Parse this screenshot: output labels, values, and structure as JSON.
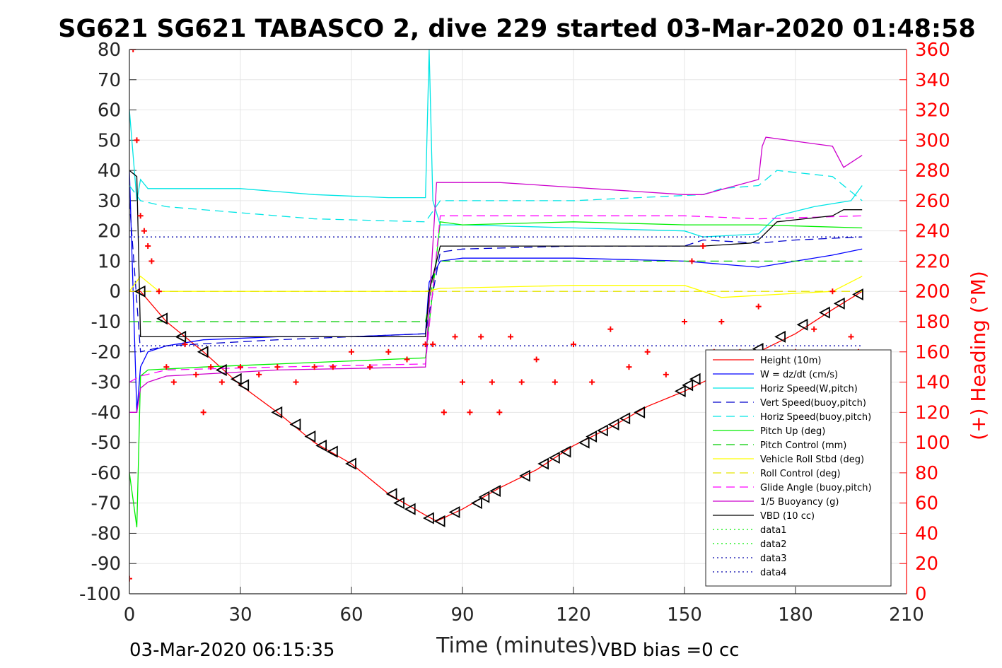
{
  "chart_data": {
    "type": "line",
    "title": "SG621 SG621 TABASCO 2, dive 229 started 03-Mar-2020 01:48:58",
    "xlabel": "Time (minutes)",
    "ylabel_right": "(+) Heading (°M)",
    "xlim": [
      0,
      210
    ],
    "ylim_left": [
      -100,
      80
    ],
    "ylim_right": [
      0,
      360
    ],
    "xticks": [
      "0",
      "30",
      "60",
      "90",
      "120",
      "150",
      "180",
      "210"
    ],
    "yticks_left": [
      "80",
      "70",
      "60",
      "50",
      "40",
      "30",
      "20",
      "10",
      "0",
      "-10",
      "-20",
      "-30",
      "-40",
      "-50",
      "-60",
      "-70",
      "-80",
      "-90",
      "-100"
    ],
    "yticks_right": [
      "360",
      "340",
      "320",
      "300",
      "280",
      "260",
      "240",
      "220",
      "200",
      "180",
      "160",
      "140",
      "120",
      "100",
      "80",
      "60",
      "40",
      "20",
      "0"
    ],
    "grid": true,
    "legend_position": "lower-right",
    "footer_left": "03-Mar-2020 06:15:35",
    "footer_right": "VBD bias =0 cc",
    "series": [
      {
        "name": "Height (10m)",
        "color": "#ff0000",
        "style": "solid",
        "x": [
          0,
          3,
          10,
          20,
          30,
          40,
          50,
          60,
          70,
          80,
          83,
          90,
          100,
          110,
          120,
          130,
          140,
          150,
          160,
          170,
          180,
          190,
          198
        ],
        "y": [
          0,
          0,
          -10,
          -20,
          -31,
          -40,
          -50,
          -57,
          -67,
          -74,
          -76,
          -72,
          -65,
          -59,
          -51,
          -45,
          -38,
          -33,
          -27,
          -20,
          -14,
          -6,
          0
        ]
      },
      {
        "name": "W = dz/dt (cm/s)",
        "color": "#0000ff",
        "style": "solid",
        "x": [
          0,
          2,
          3,
          5,
          10,
          20,
          40,
          60,
          80,
          81,
          84,
          90,
          120,
          150,
          170,
          180,
          190,
          198
        ],
        "y": [
          40,
          -40,
          -25,
          -20,
          -18,
          -16,
          -15,
          -15,
          -14,
          3,
          10,
          11,
          11,
          10,
          8,
          10,
          12,
          14
        ]
      },
      {
        "name": "Horiz Speed(W,pitch)",
        "color": "#00e5e5",
        "style": "solid",
        "x": [
          0,
          2,
          3,
          5,
          15,
          30,
          50,
          70,
          80,
          81,
          82,
          84,
          90,
          120,
          150,
          155,
          170,
          175,
          185,
          195,
          198
        ],
        "y": [
          60,
          30,
          37,
          34,
          34,
          34,
          32,
          31,
          31,
          80,
          30,
          22,
          22,
          21,
          20,
          18,
          19,
          25,
          28,
          30,
          35
        ]
      },
      {
        "name": "Vert Speed(buoy,pitch)",
        "color": "#0000cc",
        "style": "dashed",
        "x": [
          0,
          3,
          10,
          40,
          80,
          84,
          90,
          120,
          150,
          155,
          170,
          180,
          198
        ],
        "y": [
          30,
          -20,
          -18,
          -16,
          -14,
          13,
          14,
          15,
          15,
          17,
          16,
          17,
          18
        ]
      },
      {
        "name": "Horiz Speed(buoy,pitch)",
        "color": "#00e5e5",
        "style": "dashed",
        "x": [
          0,
          3,
          10,
          30,
          50,
          80,
          84,
          120,
          155,
          160,
          170,
          175,
          190,
          198
        ],
        "y": [
          35,
          30,
          28,
          26,
          24,
          23,
          30,
          30,
          32,
          34,
          35,
          40,
          38,
          30
        ]
      },
      {
        "name": "Pitch Up (deg)",
        "color": "#00ee00",
        "style": "solid",
        "x": [
          0,
          2,
          3,
          5,
          20,
          40,
          60,
          80,
          84,
          90,
          120,
          150,
          170,
          198
        ],
        "y": [
          -60,
          -78,
          -28,
          -26,
          -25,
          -24,
          -23,
          -22,
          23,
          22,
          23,
          22,
          22,
          21
        ]
      },
      {
        "name": "Pitch Control (mm)",
        "color": "#00cc00",
        "style": "dashed",
        "x": [
          0,
          80,
          83,
          198
        ],
        "y": [
          -10,
          -10,
          10,
          10
        ]
      },
      {
        "name": "Vehicle Roll Stbd (deg)",
        "color": "#ffff00",
        "style": "solid",
        "x": [
          0,
          3,
          8,
          30,
          60,
          80,
          84,
          120,
          150,
          160,
          190,
          198
        ],
        "y": [
          0,
          5,
          0,
          0,
          0,
          0,
          1,
          2,
          2,
          -2,
          0,
          5
        ]
      },
      {
        "name": "Roll Control (deg)",
        "color": "#e5e500",
        "style": "dashed",
        "x": [
          0,
          198
        ],
        "y": [
          0,
          0
        ]
      },
      {
        "name": "Glide Angle (buoy,pitch)",
        "color": "#ff00ff",
        "style": "dashed",
        "x": [
          0,
          3,
          10,
          40,
          80,
          84,
          120,
          150,
          170,
          198
        ],
        "y": [
          -30,
          -28,
          -26,
          -25,
          -24,
          25,
          25,
          25,
          24,
          25
        ]
      },
      {
        "name": "1/5 Buoyancy (g)",
        "color": "#cc00cc",
        "style": "solid",
        "x": [
          0,
          2,
          3,
          5,
          10,
          40,
          80,
          83,
          84,
          100,
          150,
          155,
          170,
          171,
          172,
          190,
          193,
          198
        ],
        "y": [
          -40,
          -40,
          -32,
          -30,
          -28,
          -26,
          -25,
          36,
          36,
          36,
          32,
          32,
          37,
          48,
          51,
          48,
          41,
          45
        ]
      },
      {
        "name": "VBD (10 cc)",
        "color": "#000000",
        "style": "solid",
        "x": [
          0,
          2,
          3,
          80,
          81,
          84,
          90,
          150,
          155,
          168,
          170,
          175,
          190,
          193,
          198
        ],
        "y": [
          40,
          38,
          -15,
          -15,
          0,
          15,
          15,
          15,
          15,
          16,
          17,
          23,
          25,
          27,
          27
        ]
      },
      {
        "name": "data1",
        "color": "#00ee00",
        "style": "dotted",
        "x": [],
        "y": []
      },
      {
        "name": "data2",
        "color": "#00ee00",
        "style": "dotted",
        "x": [],
        "y": []
      },
      {
        "name": "data3",
        "color": "#0000aa",
        "style": "dotted",
        "x": [
          0,
          198
        ],
        "y": [
          -18,
          -18
        ]
      },
      {
        "name": "data4",
        "color": "#0000aa",
        "style": "dotted",
        "x": [
          0,
          198
        ],
        "y": [
          18,
          18
        ]
      }
    ],
    "heading_series": {
      "name": "(+) Heading (°M)",
      "color": "#ff0000",
      "marker": "+",
      "x": [
        0,
        1,
        2,
        3,
        4,
        5,
        6,
        8,
        10,
        12,
        15,
        18,
        20,
        22,
        25,
        30,
        35,
        40,
        45,
        50,
        55,
        60,
        65,
        70,
        75,
        80,
        82,
        85,
        88,
        90,
        92,
        95,
        98,
        100,
        103,
        106,
        110,
        115,
        120,
        125,
        130,
        135,
        140,
        145,
        150,
        152,
        155,
        158,
        160,
        165,
        170,
        175,
        180,
        185,
        190,
        195,
        197
      ],
      "y": [
        10,
        360,
        300,
        250,
        240,
        230,
        220,
        200,
        150,
        140,
        165,
        145,
        120,
        150,
        140,
        150,
        145,
        150,
        140,
        150,
        150,
        160,
        150,
        160,
        155,
        165,
        165,
        120,
        170,
        140,
        120,
        170,
        140,
        120,
        170,
        140,
        155,
        140,
        165,
        140,
        175,
        150,
        160,
        145,
        180,
        220,
        230,
        160,
        180,
        160,
        190,
        140,
        160,
        175,
        200,
        170,
        160
      ]
    },
    "marker_series": {
      "name": "Height markers",
      "color": "#000000",
      "marker": "triangle",
      "x": [
        3,
        9,
        14,
        20,
        25,
        29,
        31,
        40,
        45,
        49,
        52,
        55,
        60,
        71,
        73,
        76,
        81,
        84,
        88,
        94,
        96,
        99,
        107,
        112,
        115,
        118,
        123,
        125,
        128,
        131,
        134,
        138,
        149,
        151,
        153,
        170,
        176,
        182,
        188,
        192,
        197
      ],
      "y": [
        0,
        -9,
        -15,
        -20,
        -26,
        -29,
        -31,
        -40,
        -44,
        -48,
        -51,
        -53,
        -57,
        -67,
        -70,
        -72,
        -75,
        -76,
        -73,
        -70,
        -68,
        -66,
        -61,
        -57,
        -55,
        -53,
        -50,
        -48,
        -46,
        -44,
        -42,
        -40,
        -33,
        -31,
        -29,
        -19,
        -15,
        -11,
        -7,
        -4,
        -1
      ]
    }
  }
}
